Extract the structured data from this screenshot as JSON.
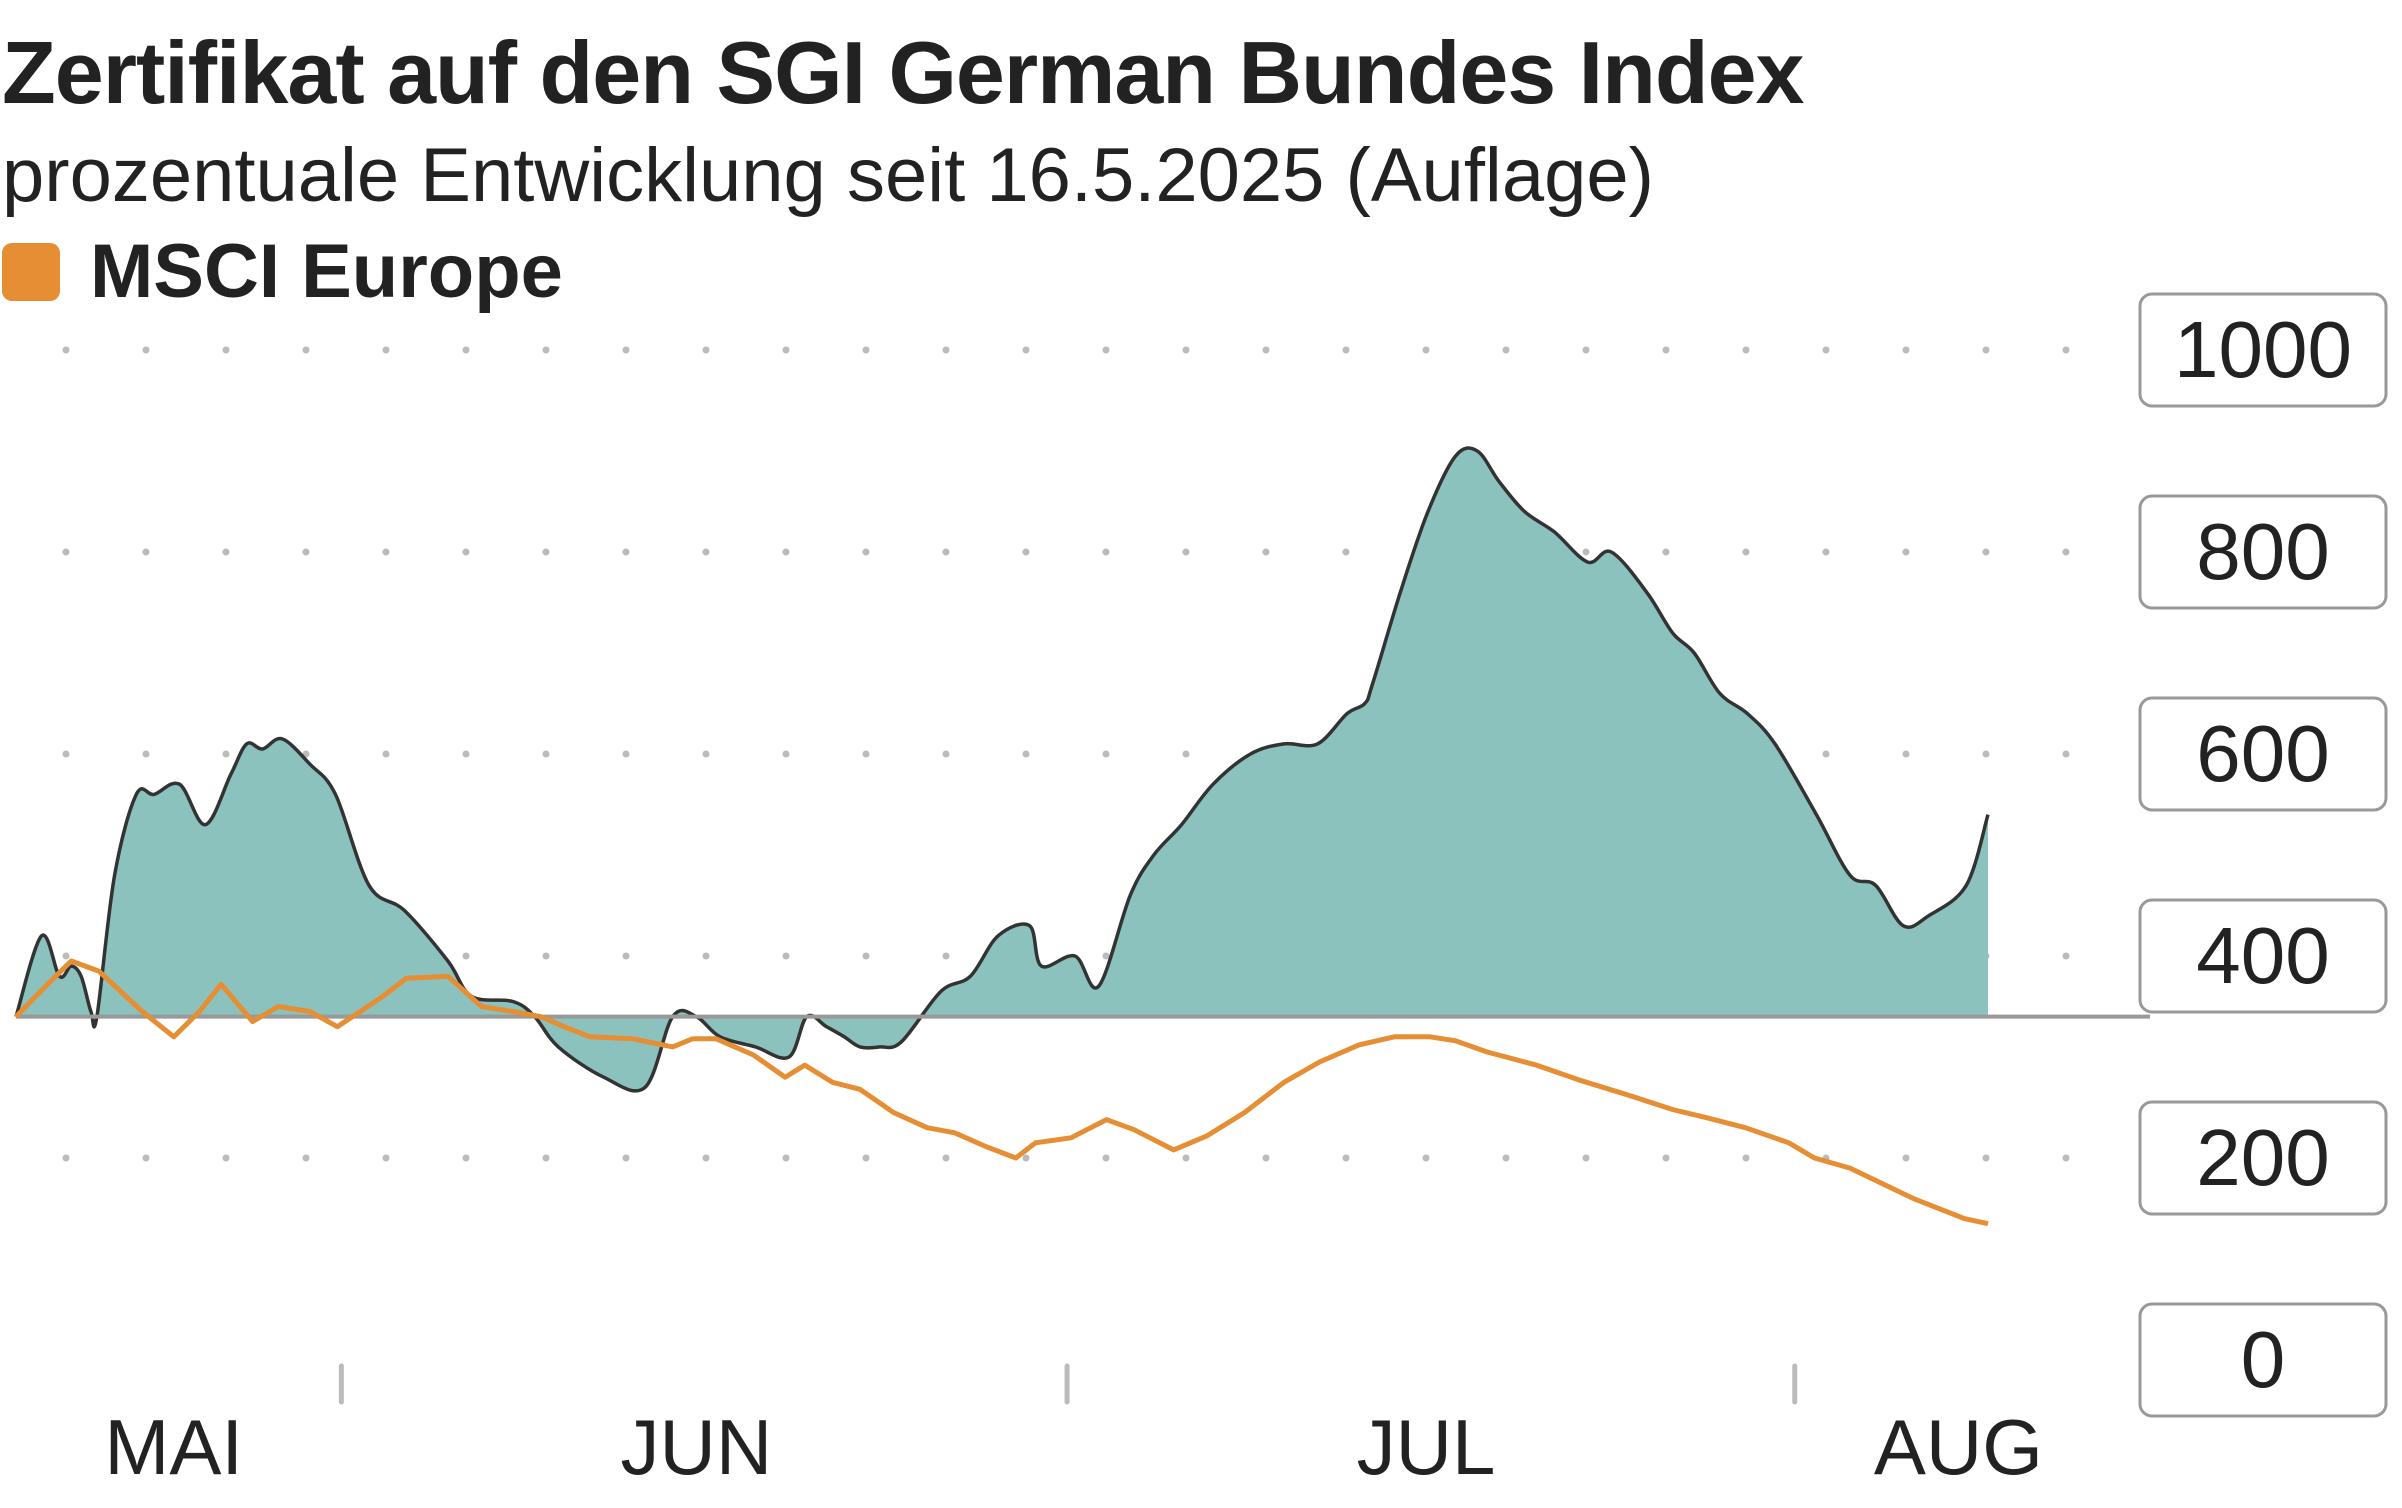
{
  "header": {
    "title": "Zertifikat auf den SGI German Bundes Index",
    "subtitle": "prozentuale Entwicklung seit 16.5.2025 (Auflage)"
  },
  "colors": {
    "area_fill": "#8cc2bd",
    "area_line": "#333333",
    "msci_line": "#e68e33",
    "baseline": "#999999",
    "grid_dot": "#bbbbbb",
    "text": "#222222"
  },
  "chart_data": {
    "type": "area",
    "title": "Zertifikat auf den SGI German Bundes Index",
    "subtitle": "prozentuale Entwicklung seit 16.5.2025 (Auflage)",
    "xlabel": "",
    "ylabel": "",
    "ylim": [
      0,
      1000
    ],
    "yticks": [
      0,
      200,
      400,
      600,
      800,
      1000
    ],
    "baseline": 340,
    "grid": true,
    "legend": {
      "position": "top-left",
      "entries": [
        "MSCI Europe"
      ]
    },
    "xlim": [
      0,
      1000
    ],
    "x_ticks": [
      {
        "label": "MAI",
        "x": 80
      },
      {
        "label": "JUN",
        "x": 345
      },
      {
        "label": "JUL",
        "x": 715
      },
      {
        "label": "AUG",
        "x": 985
      }
    ],
    "x_separators": [
      165,
      533,
      902
    ],
    "series": [
      {
        "name": "Zertifikat auf den SGI German Bundes Index",
        "style": "area",
        "points": [
          [
            0,
            340
          ],
          [
            13,
            420
          ],
          [
            22,
            380
          ],
          [
            28,
            390
          ],
          [
            33,
            380
          ],
          [
            38,
            345
          ],
          [
            41,
            340
          ],
          [
            50,
            480
          ],
          [
            61,
            560
          ],
          [
            70,
            560
          ],
          [
            83,
            570
          ],
          [
            96,
            530
          ],
          [
            109,
            580
          ],
          [
            117,
            610
          ],
          [
            125,
            605
          ],
          [
            135,
            615
          ],
          [
            149,
            590
          ],
          [
            162,
            560
          ],
          [
            179,
            470
          ],
          [
            197,
            445
          ],
          [
            219,
            395
          ],
          [
            231,
            360
          ],
          [
            252,
            355
          ],
          [
            263,
            340
          ],
          [
            275,
            310
          ],
          [
            298,
            280
          ],
          [
            319,
            270
          ],
          [
            333,
            340
          ],
          [
            345,
            340
          ],
          [
            357,
            320
          ],
          [
            375,
            310
          ],
          [
            392,
            300
          ],
          [
            401,
            340
          ],
          [
            411,
            330
          ],
          [
            420,
            320
          ],
          [
            428,
            310
          ],
          [
            438,
            310
          ],
          [
            449,
            315
          ],
          [
            469,
            365
          ],
          [
            484,
            380
          ],
          [
            498,
            420
          ],
          [
            514,
            430
          ],
          [
            520,
            390
          ],
          [
            537,
            400
          ],
          [
            549,
            370
          ],
          [
            565,
            460
          ],
          [
            577,
            500
          ],
          [
            591,
            530
          ],
          [
            607,
            570
          ],
          [
            626,
            600
          ],
          [
            643,
            610
          ],
          [
            660,
            610
          ],
          [
            675,
            640
          ],
          [
            684,
            650
          ],
          [
            688,
            670
          ],
          [
            702,
            760
          ],
          [
            716,
            840
          ],
          [
            730,
            895
          ],
          [
            741,
            900
          ],
          [
            752,
            870
          ],
          [
            765,
            840
          ],
          [
            780,
            820
          ],
          [
            797,
            790
          ],
          [
            809,
            800
          ],
          [
            827,
            760
          ],
          [
            840,
            720
          ],
          [
            851,
            700
          ],
          [
            864,
            660
          ],
          [
            878,
            640
          ],
          [
            892,
            610
          ],
          [
            913,
            540
          ],
          [
            930,
            480
          ],
          [
            943,
            470
          ],
          [
            957,
            430
          ],
          [
            970,
            440
          ],
          [
            989,
            470
          ],
          [
            1000,
            540
          ]
        ]
      },
      {
        "name": "MSCI Europe",
        "style": "line",
        "points": [
          [
            0,
            340
          ],
          [
            16,
            372
          ],
          [
            28,
            395
          ],
          [
            42,
            385
          ],
          [
            64,
            345
          ],
          [
            80,
            320
          ],
          [
            93,
            345
          ],
          [
            104,
            372
          ],
          [
            120,
            335
          ],
          [
            133,
            350
          ],
          [
            149,
            345
          ],
          [
            163,
            330
          ],
          [
            186,
            360
          ],
          [
            198,
            378
          ],
          [
            219,
            380
          ],
          [
            236,
            350
          ],
          [
            252,
            345
          ],
          [
            266,
            340
          ],
          [
            278,
            330
          ],
          [
            291,
            320
          ],
          [
            313,
            318
          ],
          [
            333,
            310
          ],
          [
            343,
            318
          ],
          [
            355,
            318
          ],
          [
            374,
            302
          ],
          [
            390,
            280
          ],
          [
            400,
            292
          ],
          [
            414,
            275
          ],
          [
            428,
            268
          ],
          [
            445,
            245
          ],
          [
            462,
            230
          ],
          [
            476,
            225
          ],
          [
            491,
            212
          ],
          [
            507,
            200
          ],
          [
            517,
            215
          ],
          [
            535,
            220
          ],
          [
            553,
            238
          ],
          [
            567,
            228
          ],
          [
            587,
            208
          ],
          [
            604,
            222
          ],
          [
            623,
            245
          ],
          [
            643,
            275
          ],
          [
            661,
            295
          ],
          [
            681,
            312
          ],
          [
            699,
            320
          ],
          [
            717,
            320
          ],
          [
            730,
            316
          ],
          [
            746,
            305
          ],
          [
            771,
            292
          ],
          [
            793,
            277
          ],
          [
            818,
            262
          ],
          [
            840,
            248
          ],
          [
            857,
            240
          ],
          [
            877,
            230
          ],
          [
            899,
            215
          ],
          [
            912,
            200
          ],
          [
            930,
            190
          ],
          [
            946,
            175
          ],
          [
            962,
            160
          ],
          [
            988,
            140
          ],
          [
            1000,
            135
          ]
        ]
      }
    ]
  }
}
